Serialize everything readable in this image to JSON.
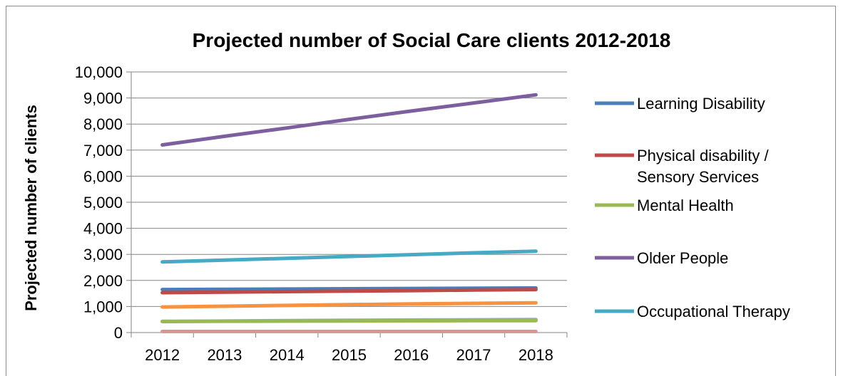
{
  "chart_data": {
    "type": "line",
    "title": "Projected number of  Social Care clients 2012-2018",
    "xlabel": "",
    "ylabel": "Projected number of clients",
    "x": [
      "2012",
      "2013",
      "2014",
      "2015",
      "2016",
      "2017",
      "2018"
    ],
    "ylim": [
      0,
      10000
    ],
    "yticks": [
      0,
      1000,
      2000,
      3000,
      4000,
      5000,
      6000,
      7000,
      8000,
      9000,
      10000
    ],
    "ytick_labels": [
      "0",
      "1,000",
      "2,000",
      "3,000",
      "4,000",
      "5,000",
      "6,000",
      "7,000",
      "8,000",
      "9,000",
      "10,000"
    ],
    "grid": true,
    "legend_position": "right",
    "series": [
      {
        "name": "Learning Disability",
        "color": "#4a7ebb",
        "values": [
          1650,
          1660,
          1670,
          1680,
          1690,
          1700,
          1710
        ],
        "in_legend": true
      },
      {
        "name": "Physical disability / Sensory Services",
        "color": "#be4b48",
        "values": [
          1530,
          1550,
          1570,
          1590,
          1610,
          1630,
          1650
        ],
        "in_legend": true
      },
      {
        "name": "Mental Health",
        "color": "#98b954",
        "values": [
          430,
          435,
          440,
          445,
          450,
          455,
          460
        ],
        "in_legend": true
      },
      {
        "name": "Older People",
        "color": "#7d5fa0",
        "values": [
          7200,
          7530,
          7850,
          8180,
          8500,
          8810,
          9120
        ],
        "in_legend": true
      },
      {
        "name": "Occupational Therapy",
        "color": "#46aac5",
        "values": [
          2710,
          2780,
          2850,
          2920,
          2990,
          3060,
          3120
        ],
        "in_legend": true
      },
      {
        "name": "",
        "color": "#f69240",
        "values": [
          980,
          1010,
          1040,
          1070,
          1100,
          1120,
          1140
        ],
        "in_legend": false
      },
      {
        "name": "",
        "color": "#93a9cf",
        "values": [
          420,
          440,
          460,
          470,
          480,
          490,
          500
        ],
        "in_legend": false
      },
      {
        "name": "",
        "color": "#d99694",
        "values": [
          40,
          40,
          40,
          40,
          40,
          40,
          40
        ],
        "in_legend": false
      }
    ]
  }
}
